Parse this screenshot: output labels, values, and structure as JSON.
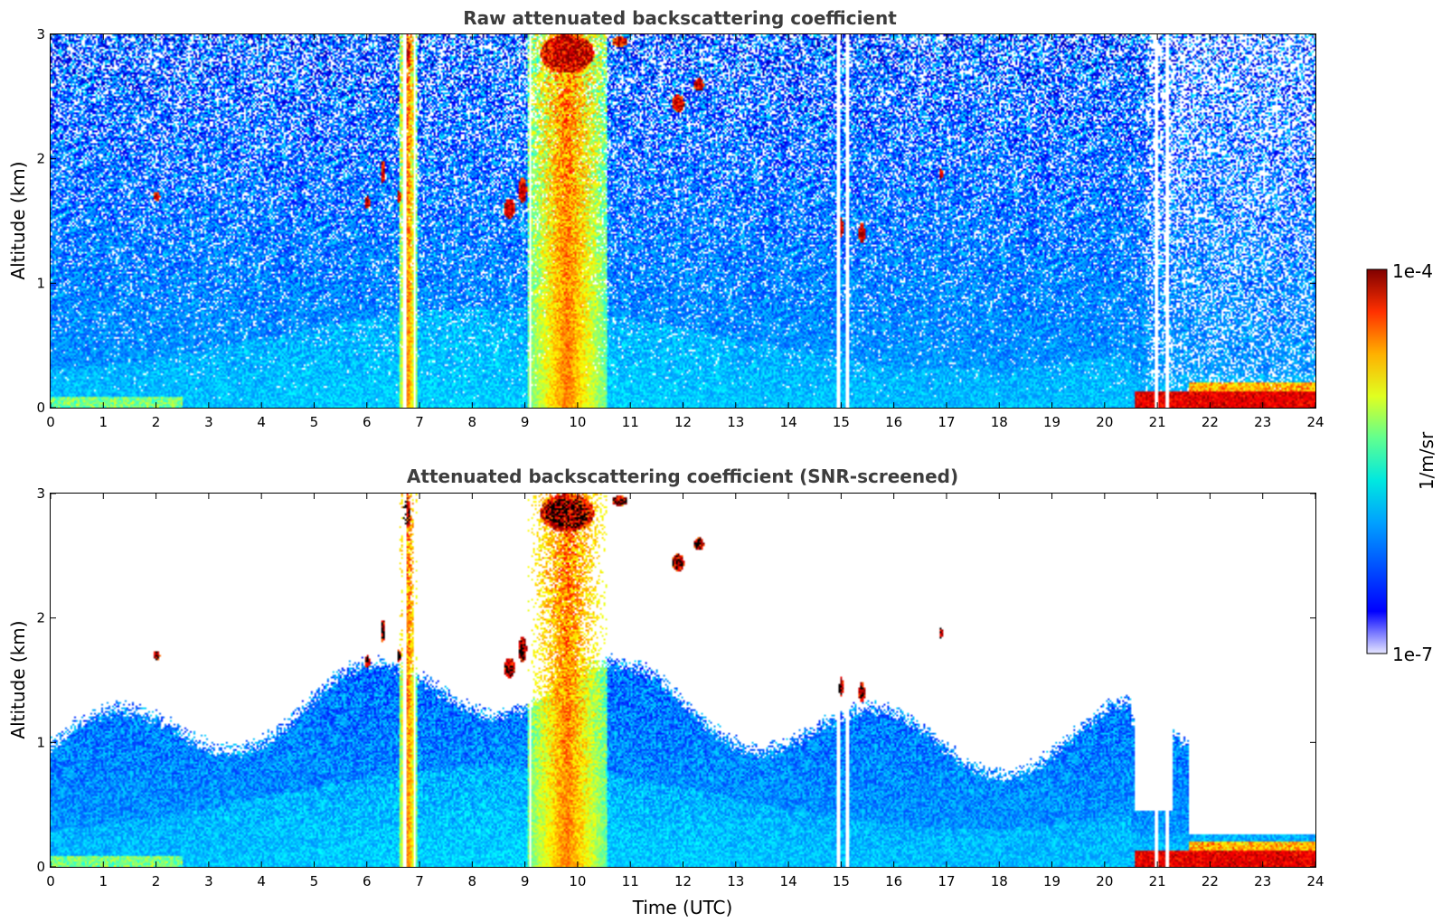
{
  "chart_data": [
    {
      "type": "heatmap",
      "title": "Raw attenuated backscattering coefficient",
      "xlabel": "",
      "ylabel": "Altitude (km)",
      "xlim": [
        0,
        24
      ],
      "ylim": [
        0,
        3
      ],
      "x_ticks": [
        "0",
        "1",
        "2",
        "3",
        "4",
        "5",
        "6",
        "7",
        "8",
        "9",
        "10",
        "11",
        "12",
        "13",
        "14",
        "15",
        "16",
        "17",
        "18",
        "19",
        "20",
        "21",
        "22",
        "23",
        "24"
      ],
      "y_ticks": [
        "0",
        "1",
        "2",
        "3"
      ],
      "screened": false
    },
    {
      "type": "heatmap",
      "title": "Attenuated backscattering coefficient (SNR-screened)",
      "xlabel": "Time (UTC)",
      "ylabel": "Altitude (km)",
      "xlim": [
        0,
        24
      ],
      "ylim": [
        0,
        3
      ],
      "x_ticks": [
        "0",
        "1",
        "2",
        "3",
        "4",
        "5",
        "6",
        "7",
        "8",
        "9",
        "10",
        "11",
        "12",
        "13",
        "14",
        "15",
        "16",
        "17",
        "18",
        "19",
        "20",
        "21",
        "22",
        "23",
        "24"
      ],
      "y_ticks": [
        "0",
        "1",
        "2",
        "3"
      ],
      "screened": true
    }
  ],
  "colorbar": {
    "label": "1/m/sr",
    "max_label": "1e-4",
    "min_label": "1e-7",
    "colormap": "jet",
    "scale": "log"
  },
  "features": {
    "aerosol_dense": [
      {
        "t0": 9.05,
        "t1": 10.55,
        "h0": 0.0,
        "h1": 3.0
      },
      {
        "t0": 6.6,
        "t1": 6.95,
        "h0": 0.0,
        "h1": 3.0
      }
    ],
    "gap_lines": [
      6.72,
      6.9,
      9.1,
      14.95,
      15.12,
      21.0,
      21.2
    ]
  }
}
